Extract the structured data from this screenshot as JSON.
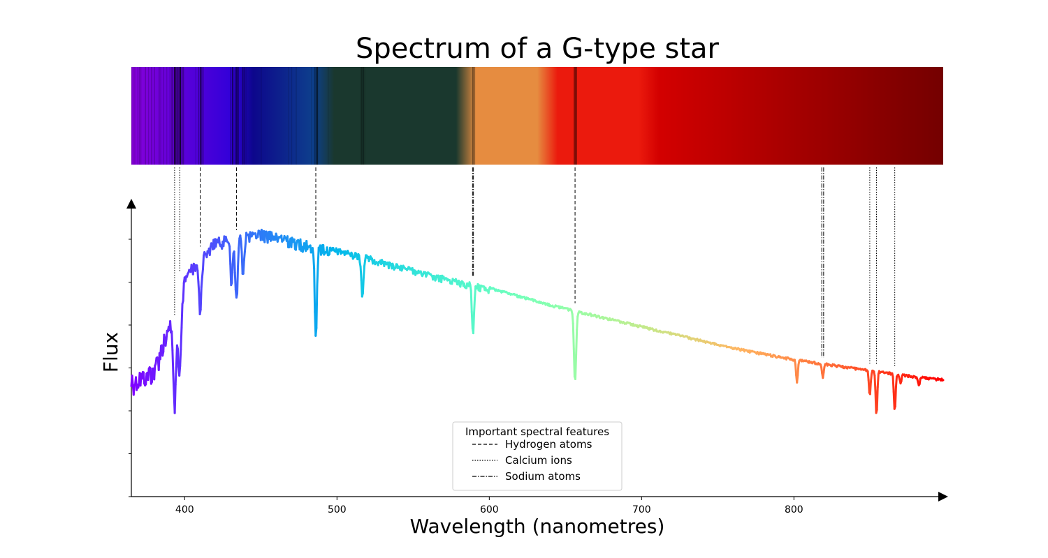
{
  "chart_data": {
    "type": "line",
    "title": "Spectrum of a G-type star",
    "xlabel": "Wavelength (nanometres)",
    "ylabel": "Flux",
    "xlim": [
      365,
      898
    ],
    "ylim": [
      0.0,
      1.0
    ],
    "x_ticks": [
      400,
      500,
      600,
      700,
      800
    ],
    "y_tick_labels_shown": false,
    "colormap": "rainbow",
    "spectrum_band": true,
    "grid": false,
    "continuum": {
      "x": [
        365,
        380,
        400,
        420,
        450,
        480,
        520,
        560,
        600,
        640,
        680,
        720,
        760,
        800,
        840,
        880,
        898
      ],
      "y": [
        0.42,
        0.46,
        0.78,
        0.9,
        0.93,
        0.89,
        0.84,
        0.78,
        0.73,
        0.67,
        0.62,
        0.57,
        0.52,
        0.48,
        0.45,
        0.42,
        0.41
      ]
    },
    "absorption_features": [
      {
        "center": 393.4,
        "depth": 0.32,
        "width": 1.5
      },
      {
        "center": 396.8,
        "depth": 0.28,
        "width": 1.5
      },
      {
        "center": 410.2,
        "depth": 0.18,
        "width": 1.2
      },
      {
        "center": 434.0,
        "depth": 0.22,
        "width": 1.2
      },
      {
        "center": 430.8,
        "depth": 0.15,
        "width": 1.0
      },
      {
        "center": 438.4,
        "depth": 0.12,
        "width": 1.0
      },
      {
        "center": 486.1,
        "depth": 0.3,
        "width": 1.0
      },
      {
        "center": 516.7,
        "depth": 0.14,
        "width": 1.0
      },
      {
        "center": 589.0,
        "depth": 0.1,
        "width": 0.8
      },
      {
        "center": 589.6,
        "depth": 0.1,
        "width": 0.8
      },
      {
        "center": 656.3,
        "depth": 0.25,
        "width": 1.0
      },
      {
        "center": 802.0,
        "depth": 0.08,
        "width": 0.8
      },
      {
        "center": 819.0,
        "depth": 0.05,
        "width": 0.8
      },
      {
        "center": 849.8,
        "depth": 0.09,
        "width": 0.8
      },
      {
        "center": 854.2,
        "depth": 0.15,
        "width": 0.8
      },
      {
        "center": 866.2,
        "depth": 0.13,
        "width": 0.8
      },
      {
        "center": 870.0,
        "depth": 0.03,
        "width": 0.8
      },
      {
        "center": 882.0,
        "depth": 0.03,
        "width": 0.8
      }
    ],
    "feature_markers": [
      {
        "x": 393.4,
        "group": "calcium"
      },
      {
        "x": 396.8,
        "group": "calcium"
      },
      {
        "x": 410.2,
        "group": "hydrogen"
      },
      {
        "x": 434.0,
        "group": "hydrogen"
      },
      {
        "x": 486.1,
        "group": "hydrogen"
      },
      {
        "x": 589.0,
        "group": "sodium"
      },
      {
        "x": 589.6,
        "group": "sodium"
      },
      {
        "x": 656.3,
        "group": "hydrogen"
      },
      {
        "x": 818.3,
        "group": "sodium"
      },
      {
        "x": 819.5,
        "group": "sodium"
      },
      {
        "x": 849.8,
        "group": "calcium"
      },
      {
        "x": 854.2,
        "group": "calcium"
      },
      {
        "x": 866.2,
        "group": "calcium"
      }
    ],
    "legend": {
      "title": "Important spectral features",
      "placement": "bottom-center",
      "entries": [
        {
          "id": "hydrogen",
          "label": "Hydrogen atoms",
          "style": "dashed"
        },
        {
          "id": "calcium",
          "label": "Calcium ions",
          "style": "dotted"
        },
        {
          "id": "sodium",
          "label": "Sodium atoms",
          "style": "dashdot"
        }
      ]
    }
  }
}
